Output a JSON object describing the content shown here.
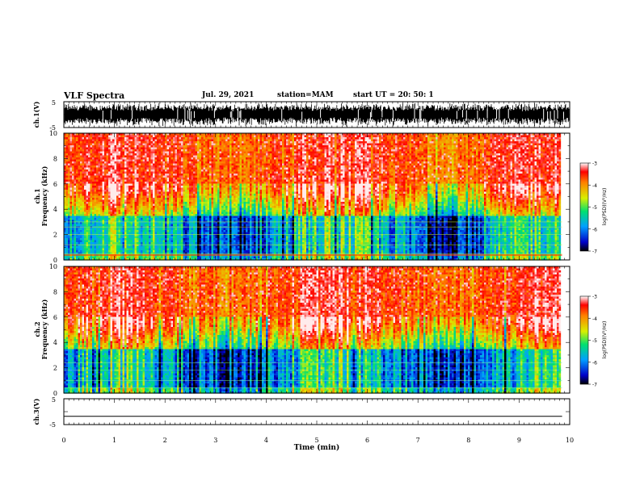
{
  "header": {
    "title": "VLF Spectra",
    "date": "Jul. 29, 2021",
    "station": "station=MAM",
    "start": "start UT = 20: 50: 1"
  },
  "chart_data": [
    {
      "type": "line",
      "id": "ch1_waveform",
      "ylabel": "ch.1(V)",
      "ytick_labels": [
        "5",
        "-5"
      ],
      "ylim": [
        -5,
        5
      ],
      "xlim": [
        0,
        10
      ],
      "description_series": "dense black waveform, near full scale"
    },
    {
      "type": "heatmap",
      "id": "ch1_spectrogram",
      "ylabel_line1": "ch.1",
      "ylabel_line2": "Frequency (kHz)",
      "yticks": [
        0,
        2,
        4,
        6,
        8,
        10
      ],
      "ylim": [
        0,
        10
      ],
      "xlim": [
        0,
        9.85
      ],
      "colorbar": {
        "label": "log(PSD)(V²/Hz)",
        "ticks": [
          -3,
          -4,
          -5,
          -6,
          -7
        ],
        "range": [
          -7,
          -3
        ]
      }
    },
    {
      "type": "heatmap",
      "id": "ch2_spectrogram",
      "ylabel_line1": "ch.2",
      "ylabel_line2": "Frequency (kHz)",
      "yticks": [
        0,
        2,
        4,
        6,
        8,
        10
      ],
      "ylim": [
        0,
        10
      ],
      "xlim": [
        0,
        9.85
      ],
      "colorbar": {
        "label": "log(PSD)(V²/Hz)",
        "ticks": [
          -3,
          -4,
          -5,
          -6,
          -7
        ],
        "range": [
          -7,
          -3
        ]
      }
    },
    {
      "type": "line",
      "id": "ch3_waveform",
      "ylabel": "ch.3(V)",
      "ytick_labels": [
        "5",
        "-5"
      ],
      "ylim": [
        -5,
        5
      ],
      "xlim": [
        0,
        10
      ],
      "series": [
        {
          "x": [
            0,
            9.85
          ],
          "y": [
            -1.8,
            -1.8
          ]
        }
      ]
    }
  ],
  "xaxis": {
    "label": "Time (min)",
    "ticks": [
      0,
      1,
      2,
      3,
      4,
      5,
      6,
      7,
      8,
      9,
      10
    ]
  }
}
